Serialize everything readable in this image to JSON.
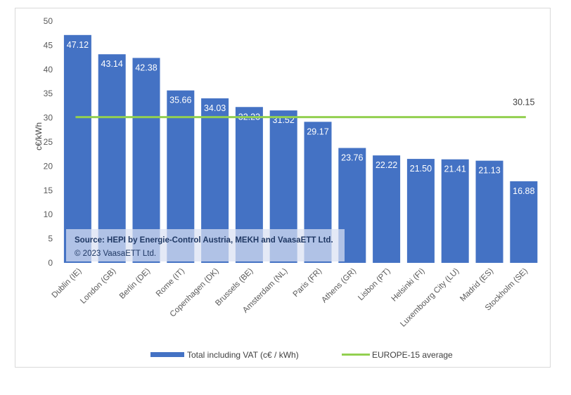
{
  "chart_data": {
    "type": "bar",
    "ylabel": "c€/kWh",
    "ylim": [
      0,
      50
    ],
    "ytick_step": 5,
    "grid": false,
    "legend_position": "bottom",
    "categories": [
      "Dublin (IE)",
      "London (GB)",
      "Berlin (DE)",
      "Rome (IT)",
      "Copenhagen (DK)",
      "Brussels (BE)",
      "Amsterdam (NL)",
      "Paris (FR)",
      "Athens (GR)",
      "Lisbon (PT)",
      "Helsinki (FI)",
      "Luxembourg City (LU)",
      "Madrid (ES)",
      "Stockholm (SE)"
    ],
    "series": [
      {
        "name": "Total  including VAT (c€ / kWh)",
        "type": "bar",
        "color": "#4472c4",
        "values": [
          47.12,
          43.14,
          42.38,
          35.66,
          34.03,
          32.23,
          31.52,
          29.17,
          23.76,
          22.22,
          21.5,
          21.41,
          21.13,
          16.88
        ],
        "value_labels": [
          "47.12",
          "43.14",
          "42.38",
          "35.66",
          "34.03",
          "32.23",
          "31.52",
          "29.17",
          "23.76",
          "22.22",
          "21.50",
          "21.41",
          "21.13",
          "16.88"
        ]
      },
      {
        "name": "EUROPE-15 average",
        "type": "line",
        "color": "#92d050",
        "value": 30.15,
        "value_label": "30.15"
      }
    ],
    "annotation": {
      "source": "Source: HEPI by Energie-Control Austria, MEKH and VaasaETT Ltd.",
      "copyright": "© 2023  VaasaETT Ltd."
    }
  }
}
